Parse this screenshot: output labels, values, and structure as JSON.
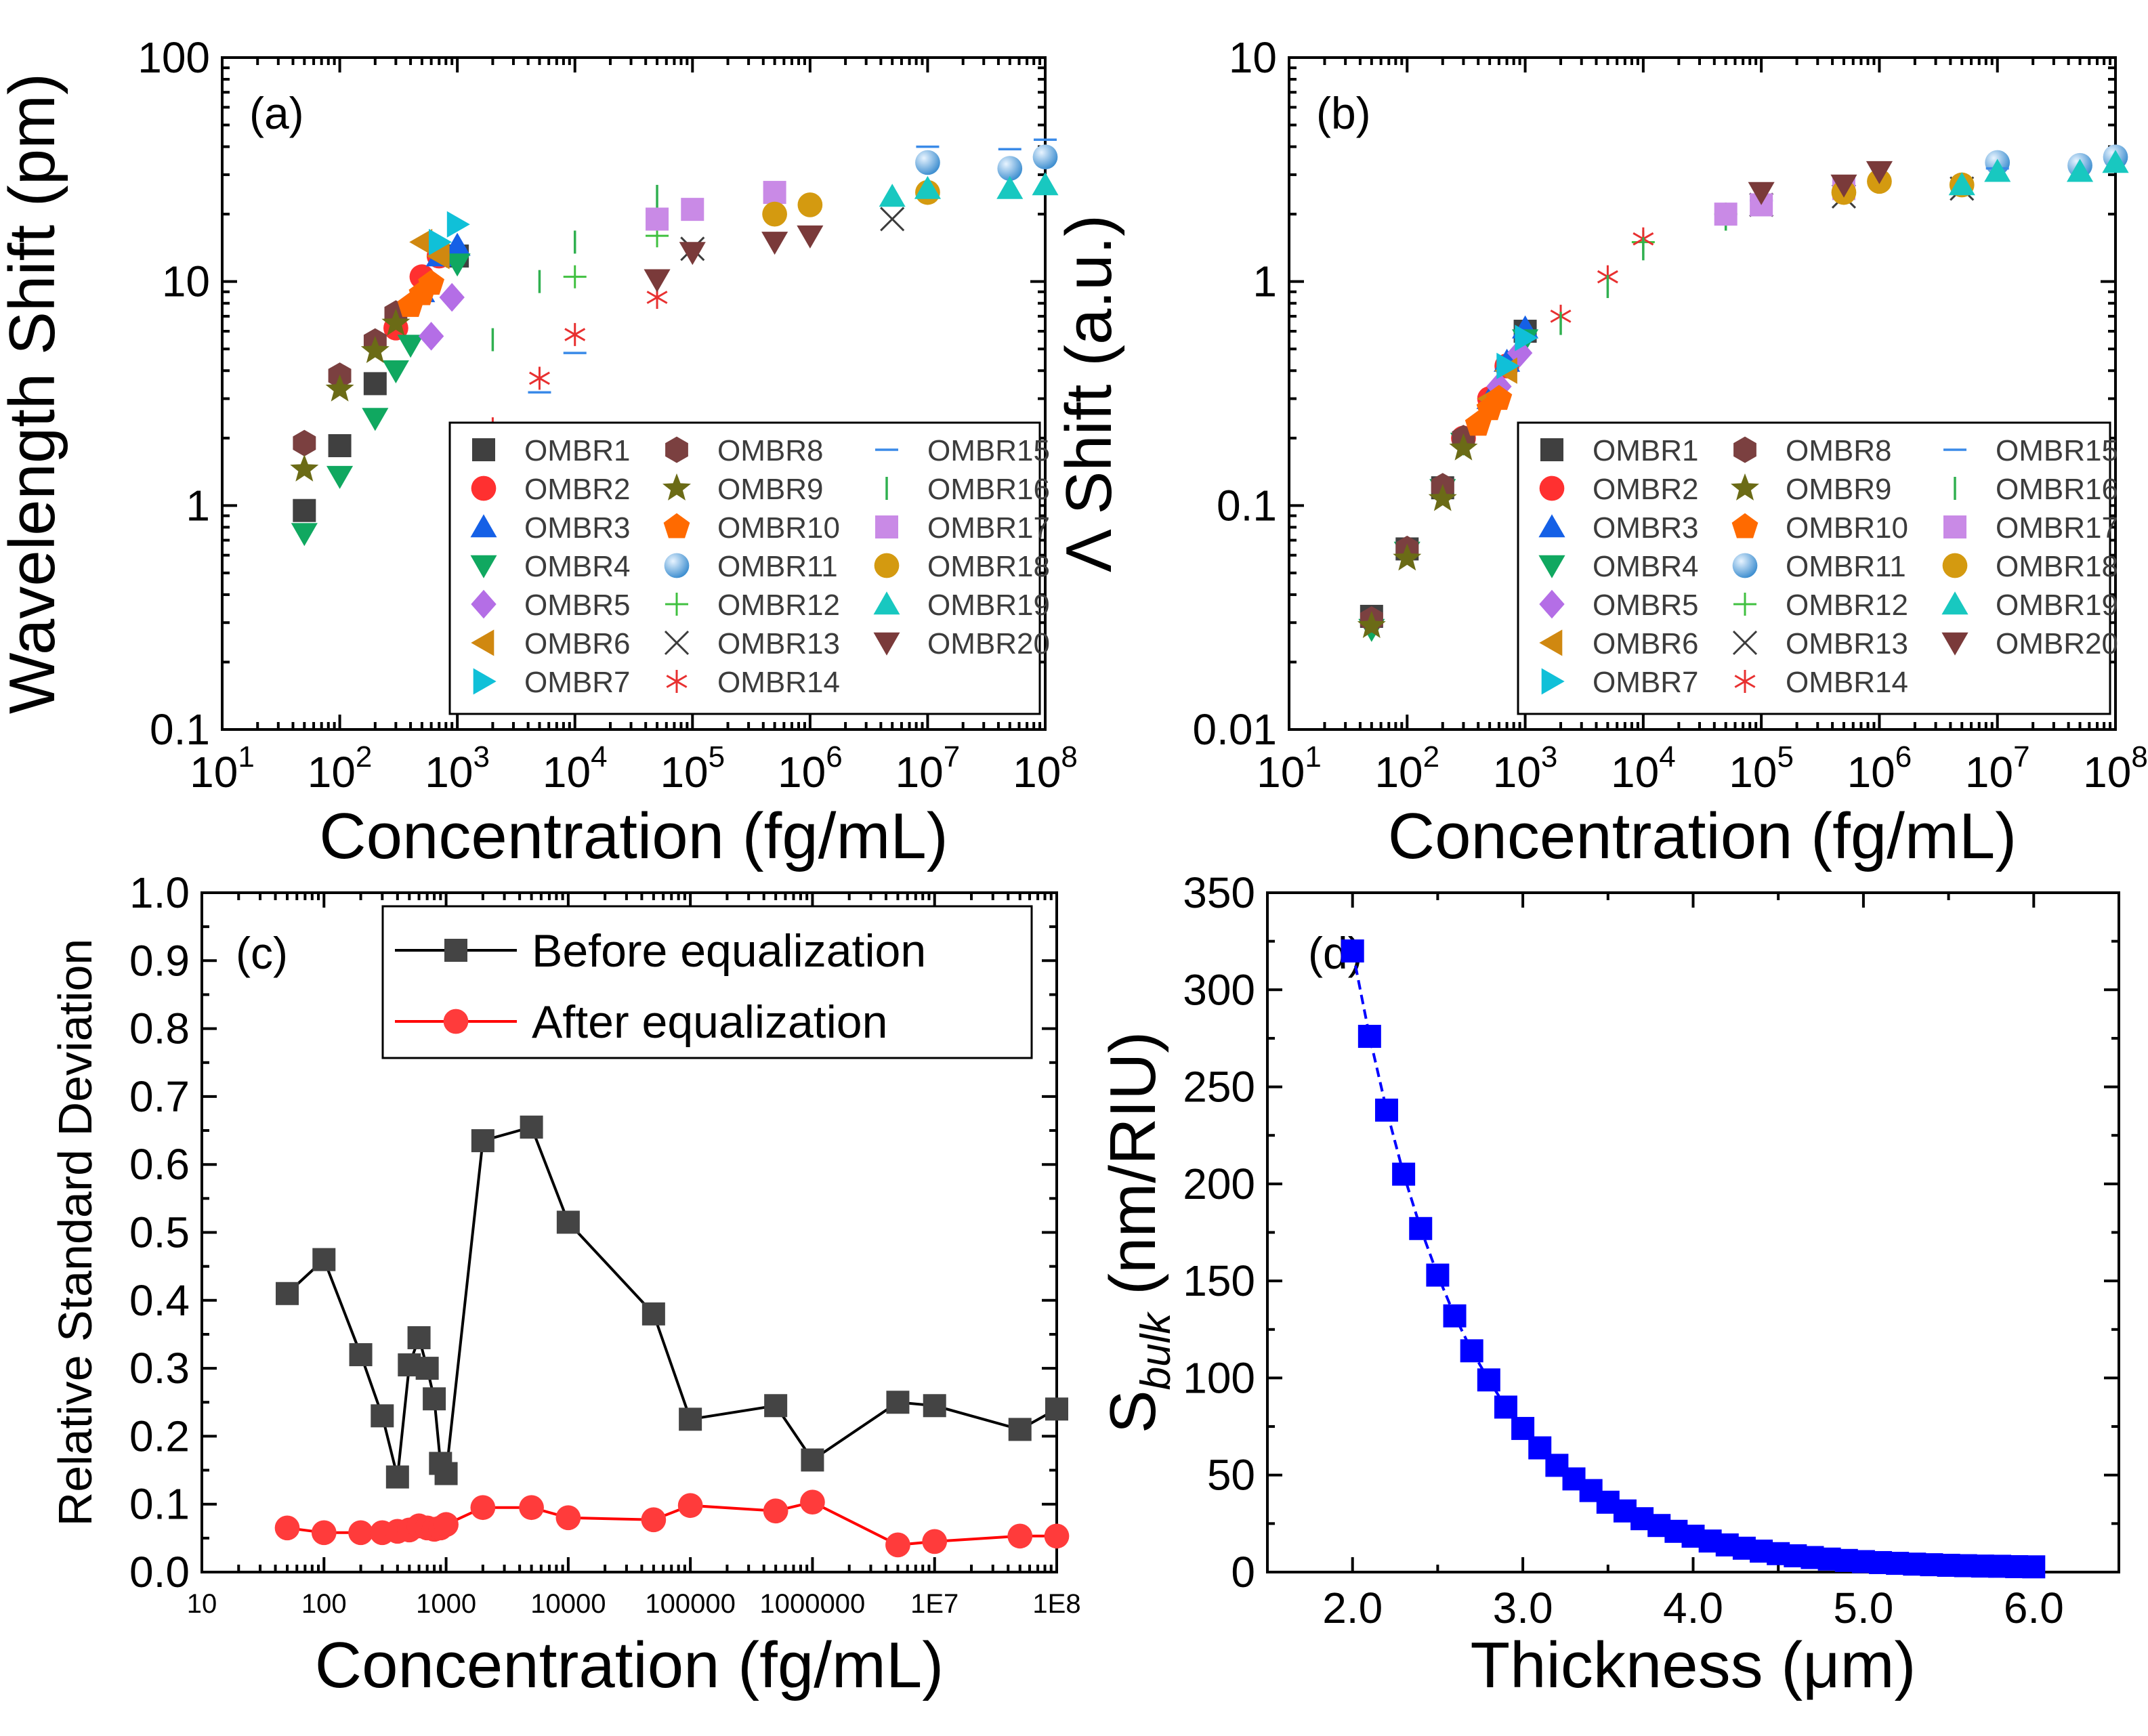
{
  "chart_data": [
    {
      "panel": "(a)",
      "type": "scatter",
      "xscale": "log",
      "yscale": "log",
      "xlabel": "Concentration (fg/mL)",
      "ylabel": "Wavelength Shift (pm)",
      "xlim": [
        10,
        100000000
      ],
      "ylim": [
        0.1,
        100
      ],
      "xtick_values": [
        10,
        100,
        1000,
        10000,
        100000,
        1000000,
        10000000,
        100000000
      ],
      "xtick_exponents": [
        "1",
        "2",
        "3",
        "4",
        "5",
        "6",
        "7",
        "8"
      ],
      "xtick_base": "10",
      "ytick_values": [
        0.1,
        1,
        10,
        100
      ],
      "ytick_labels": [
        "0.1",
        "1",
        "10",
        "100"
      ],
      "legend_position": "lower-right",
      "series": [
        {
          "name": "OMBR1",
          "marker": "square",
          "color": "#404040",
          "x": [
            50,
            100,
            200,
            1000
          ],
          "y": [
            0.95,
            1.85,
            3.5,
            13
          ]
        },
        {
          "name": "OMBR2",
          "marker": "circle",
          "color": "#ff3030",
          "x": [
            300,
            500,
            700
          ],
          "y": [
            6.2,
            10.5,
            13
          ]
        },
        {
          "name": "OMBR3",
          "marker": "triangle-up",
          "color": "#1560e6",
          "x": [
            500,
            700,
            1000
          ],
          "y": [
            9,
            13,
            14.5
          ]
        },
        {
          "name": "OMBR4",
          "marker": "triangle-down",
          "color": "#10a860",
          "x": [
            50,
            100,
            200,
            300,
            400,
            1000
          ],
          "y": [
            0.75,
            1.35,
            2.45,
            4.0,
            5.2,
            12
          ]
        },
        {
          "name": "OMBR5",
          "marker": "diamond",
          "color": "#b46ee6",
          "x": [
            600,
            900
          ],
          "y": [
            5.7,
            8.5
          ]
        },
        {
          "name": "OMBR6",
          "marker": "triangle-left",
          "color": "#d08810",
          "x": [
            500,
            700
          ],
          "y": [
            15,
            13
          ]
        },
        {
          "name": "OMBR7",
          "marker": "triangle-right",
          "color": "#10c0d8",
          "x": [
            700,
            1000
          ],
          "y": [
            15,
            18
          ]
        },
        {
          "name": "OMBR8",
          "marker": "hexagon",
          "color": "#7b4040",
          "x": [
            50,
            100,
            200,
            300
          ],
          "y": [
            1.9,
            3.8,
            5.4,
            7.2
          ]
        },
        {
          "name": "OMBR9",
          "marker": "star",
          "color": "#6b6b16",
          "x": [
            50,
            100,
            200,
            300
          ],
          "y": [
            1.45,
            3.3,
            4.9,
            6.5
          ]
        },
        {
          "name": "OMBR10",
          "marker": "pentagon",
          "color": "#ff6a00",
          "x": [
            400,
            500,
            600
          ],
          "y": [
            7.8,
            8.8,
            9.8
          ]
        },
        {
          "name": "OMBR11",
          "marker": "sphere",
          "color": "#3f8fd0",
          "x": [
            10000000,
            50000000,
            100000000
          ],
          "y": [
            34,
            32,
            36
          ]
        },
        {
          "name": "OMBR12",
          "marker": "plus",
          "color": "#40c040",
          "x": [
            10000,
            50000
          ],
          "y": [
            10.5,
            16
          ]
        },
        {
          "name": "OMBR13",
          "marker": "x",
          "color": "#3c3c3c",
          "x": [
            100000,
            5000000
          ],
          "y": [
            14,
            19
          ]
        },
        {
          "name": "OMBR14",
          "marker": "asterisk",
          "color": "#e83030",
          "x": [
            2000,
            5000,
            10000,
            50000
          ],
          "y": [
            2.2,
            3.7,
            5.8,
            8.5
          ]
        },
        {
          "name": "OMBR15",
          "marker": "hline",
          "color": "#3a8ae8",
          "x": [
            5000,
            10000,
            10000000,
            50000000,
            100000000
          ],
          "y": [
            3.2,
            4.8,
            40,
            39,
            43
          ]
        },
        {
          "name": "OMBR16",
          "marker": "vline",
          "color": "#30b050",
          "x": [
            2000,
            5000,
            10000,
            50000
          ],
          "y": [
            5.5,
            10,
            15,
            24
          ]
        },
        {
          "name": "OMBR17",
          "marker": "square",
          "color": "#c98ae6",
          "x": [
            50000,
            100000,
            500000
          ],
          "y": [
            19,
            21,
            25
          ]
        },
        {
          "name": "OMBR18",
          "marker": "circle",
          "color": "#d49a10",
          "x": [
            500000,
            1000000,
            10000000
          ],
          "y": [
            20,
            22,
            25
          ]
        },
        {
          "name": "OMBR19",
          "marker": "triangle-up",
          "color": "#18c8c0",
          "x": [
            5000000,
            10000000,
            50000000,
            100000000
          ],
          "y": [
            24,
            26,
            26,
            27
          ]
        },
        {
          "name": "OMBR20",
          "marker": "triangle-down",
          "color": "#7a3a3a",
          "x": [
            50000,
            100000,
            500000,
            1000000
          ],
          "y": [
            10.2,
            13.5,
            15,
            16
          ]
        }
      ]
    },
    {
      "panel": "(b)",
      "type": "scatter",
      "xscale": "log",
      "yscale": "log",
      "xlabel": "Concentration (fg/mL)",
      "ylabel": "Λ Shift (a.u.)",
      "xlim": [
        10,
        100000000
      ],
      "ylim": [
        0.01,
        10
      ],
      "xtick_values": [
        10,
        100,
        1000,
        10000,
        100000,
        1000000,
        10000000,
        100000000
      ],
      "xtick_exponents": [
        "1",
        "2",
        "3",
        "4",
        "5",
        "6",
        "7",
        "8"
      ],
      "xtick_base": "10",
      "ytick_values": [
        0.01,
        0.1,
        1,
        10
      ],
      "ytick_labels": [
        "0.01",
        "0.1",
        "1",
        "10"
      ],
      "legend_position": "lower-right",
      "series": [
        {
          "name": "OMBR1",
          "x": [
            50,
            100,
            200,
            1000
          ],
          "y": [
            0.032,
            0.064,
            0.12,
            0.6
          ]
        },
        {
          "name": "OMBR2",
          "x": [
            300,
            500,
            700
          ],
          "y": [
            0.2,
            0.3,
            0.42
          ]
        },
        {
          "name": "OMBR3",
          "x": [
            500,
            700,
            1000
          ],
          "y": [
            0.3,
            0.44,
            0.62
          ]
        },
        {
          "name": "OMBR4",
          "x": [
            50,
            100,
            200,
            300,
            1000
          ],
          "y": [
            0.028,
            0.062,
            0.118,
            0.19,
            0.55
          ]
        },
        {
          "name": "OMBR5",
          "x": [
            600,
            900
          ],
          "y": [
            0.34,
            0.48
          ]
        },
        {
          "name": "OMBR6",
          "x": [
            500,
            700
          ],
          "y": [
            0.3,
            0.4
          ]
        },
        {
          "name": "OMBR7",
          "x": [
            700,
            1000
          ],
          "y": [
            0.42,
            0.56
          ]
        },
        {
          "name": "OMBR8",
          "x": [
            50,
            100,
            200,
            300
          ],
          "y": [
            0.031,
            0.064,
            0.122,
            0.2
          ]
        },
        {
          "name": "OMBR9",
          "x": [
            50,
            100,
            200,
            300
          ],
          "y": [
            0.029,
            0.058,
            0.107,
            0.18
          ]
        },
        {
          "name": "OMBR10",
          "x": [
            400,
            500,
            600
          ],
          "y": [
            0.23,
            0.27,
            0.3
          ]
        },
        {
          "name": "OMBR11",
          "x": [
            10000000,
            50000000,
            100000000
          ],
          "y": [
            3.4,
            3.3,
            3.6
          ]
        },
        {
          "name": "OMBR12",
          "x": [
            10000,
            50000
          ],
          "y": [
            1.5,
            2.0
          ]
        },
        {
          "name": "OMBR13",
          "x": [
            100000,
            500000,
            5000000
          ],
          "y": [
            2.2,
            2.4,
            2.6
          ]
        },
        {
          "name": "OMBR14",
          "x": [
            2000,
            5000,
            10000
          ],
          "y": [
            0.7,
            1.05,
            1.55
          ]
        },
        {
          "name": "OMBR15",
          "x": [
            100000,
            10000000
          ],
          "y": [
            2.3,
            3.2
          ]
        },
        {
          "name": "OMBR16",
          "x": [
            2000,
            5000,
            10000,
            50000
          ],
          "y": [
            0.65,
            0.95,
            1.4,
            1.9
          ]
        },
        {
          "name": "OMBR17",
          "x": [
            50000,
            100000,
            500000
          ],
          "y": [
            2.0,
            2.2,
            2.6
          ]
        },
        {
          "name": "OMBR18",
          "x": [
            500000,
            1000000,
            5000000
          ],
          "y": [
            2.5,
            2.8,
            2.7
          ]
        },
        {
          "name": "OMBR19",
          "x": [
            5000000,
            10000000,
            50000000,
            100000000
          ],
          "y": [
            2.7,
            3.1,
            3.1,
            3.4
          ]
        },
        {
          "name": "OMBR20",
          "x": [
            100000,
            500000,
            1000000
          ],
          "y": [
            2.5,
            2.7,
            3.1
          ]
        }
      ]
    },
    {
      "panel": "(c)",
      "type": "line",
      "xscale": "log",
      "xlabel": "Concentration (fg/mL)",
      "ylabel": "Relative Standard Deviation",
      "xlim": [
        10,
        100000000
      ],
      "ylim": [
        0,
        1
      ],
      "xtick_values": [
        10,
        100,
        1000,
        10000,
        100000,
        1000000,
        10000000,
        100000000
      ],
      "xtick_labels": [
        "10",
        "100",
        "1000",
        "10000",
        "100000",
        "1000000",
        "1E7",
        "1E8"
      ],
      "ytick_values": [
        0,
        0.1,
        0.2,
        0.3,
        0.4,
        0.5,
        0.6,
        0.7,
        0.8,
        0.9,
        1.0
      ],
      "ytick_labels": [
        "0.0",
        "0.1",
        "0.2",
        "0.3",
        "0.4",
        "0.5",
        "0.6",
        "0.7",
        "0.8",
        "0.9",
        "1.0"
      ],
      "legend_position": "top-right",
      "series": [
        {
          "name": "Before equalization",
          "color": "#000000",
          "marker_color": "#444444",
          "marker": "square",
          "x": [
            50,
            100,
            200,
            300,
            400,
            500,
            600,
            700,
            800,
            900,
            1000,
            2000,
            5000,
            10000,
            50000,
            100000,
            500000,
            1000000,
            5000000,
            10000000,
            50000000,
            100000000
          ],
          "y": [
            0.41,
            0.46,
            0.32,
            0.23,
            0.14,
            0.305,
            0.345,
            0.3,
            0.255,
            0.16,
            0.145,
            0.635,
            0.655,
            0.515,
            0.38,
            0.225,
            0.245,
            0.165,
            0.25,
            0.245,
            0.21,
            0.24
          ]
        },
        {
          "name": "After equalization",
          "color": "#ff0000",
          "marker_color": "#ff3b3b",
          "marker": "circle",
          "x": [
            50,
            100,
            200,
            300,
            400,
            500,
            600,
            700,
            800,
            900,
            1000,
            2000,
            5000,
            10000,
            50000,
            100000,
            500000,
            1000000,
            5000000,
            10000000,
            50000000,
            100000000
          ],
          "y": [
            0.065,
            0.058,
            0.058,
            0.058,
            0.06,
            0.062,
            0.068,
            0.065,
            0.063,
            0.065,
            0.07,
            0.095,
            0.095,
            0.08,
            0.077,
            0.098,
            0.09,
            0.103,
            0.04,
            0.045,
            0.053,
            0.053
          ]
        }
      ]
    },
    {
      "panel": "(d)",
      "type": "line",
      "xlabel": "Thickness (μm)",
      "ylabel_main": "S",
      "ylabel_sub": "bulk",
      "ylabel_unit": " (nm/RIU)",
      "xlim": [
        1.5,
        6.5
      ],
      "ylim": [
        0,
        350
      ],
      "xtick_values": [
        2.0,
        3.0,
        4.0,
        5.0,
        6.0
      ],
      "xtick_labels": [
        "2.0",
        "3.0",
        "4.0",
        "5.0",
        "6.0"
      ],
      "ytick_values": [
        0,
        50,
        100,
        150,
        200,
        250,
        300,
        350
      ],
      "ytick_labels": [
        "0",
        "50",
        "100",
        "150",
        "200",
        "250",
        "300",
        "350"
      ],
      "color": "#0000ff",
      "marker": "square",
      "x": [
        2.0,
        2.1,
        2.2,
        2.3,
        2.4,
        2.5,
        2.6,
        2.7,
        2.8,
        2.9,
        3.0,
        3.1,
        3.2,
        3.3,
        3.4,
        3.5,
        3.6,
        3.7,
        3.8,
        3.9,
        4.0,
        4.1,
        4.2,
        4.3,
        4.4,
        4.5,
        4.6,
        4.7,
        4.8,
        4.9,
        5.0,
        5.1,
        5.2,
        5.3,
        5.4,
        5.5,
        5.6,
        5.7,
        5.8,
        5.9,
        6.0
      ],
      "y": [
        320,
        276,
        238,
        205,
        177,
        153,
        132,
        114,
        99,
        85,
        74,
        64,
        55,
        48,
        42,
        36,
        31.5,
        27.5,
        24,
        21,
        18.5,
        16,
        14,
        12.3,
        10.8,
        9.5,
        8.4,
        7.5,
        6.7,
        6,
        5.4,
        4.9,
        4.5,
        4.1,
        3.8,
        3.5,
        3.3,
        3.1,
        3.0,
        2.8,
        2.7
      ]
    }
  ],
  "panel_labels": {
    "a": "(a)",
    "b": "(b)",
    "c": "(c)",
    "d": "(d)"
  }
}
